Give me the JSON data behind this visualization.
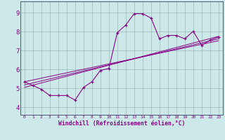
{
  "xlabel": "Windchill (Refroidissement éolien,°C)",
  "bg_color": "#cce8e8",
  "line_color": "#880088",
  "grid_color": "#99bbbb",
  "axis_color": "#555577",
  "x_ticks": [
    0,
    1,
    2,
    3,
    4,
    5,
    6,
    7,
    8,
    9,
    10,
    11,
    12,
    13,
    14,
    15,
    16,
    17,
    18,
    19,
    20,
    21,
    22,
    23
  ],
  "y_ticks": [
    4,
    5,
    6,
    7,
    8,
    9
  ],
  "xlim": [
    -0.5,
    23.5
  ],
  "ylim": [
    3.6,
    9.6
  ],
  "line1_x": [
    0,
    1,
    2,
    3,
    4,
    5,
    6,
    7,
    8,
    9,
    10,
    11,
    12,
    13,
    14,
    15,
    16,
    17,
    18,
    19,
    20,
    21,
    22,
    23
  ],
  "line1_y": [
    5.35,
    5.15,
    4.95,
    4.62,
    4.62,
    4.62,
    4.38,
    5.05,
    5.35,
    5.95,
    6.05,
    7.95,
    8.35,
    8.95,
    8.95,
    8.72,
    7.62,
    7.8,
    7.8,
    7.62,
    8.02,
    7.28,
    7.55,
    7.72
  ],
  "line2_x": [
    0,
    23
  ],
  "line2_y": [
    5.18,
    7.62
  ],
  "line3_x": [
    0,
    23
  ],
  "line3_y": [
    5.05,
    7.75
  ],
  "line4_x": [
    0,
    23
  ],
  "line4_y": [
    5.35,
    7.52
  ]
}
